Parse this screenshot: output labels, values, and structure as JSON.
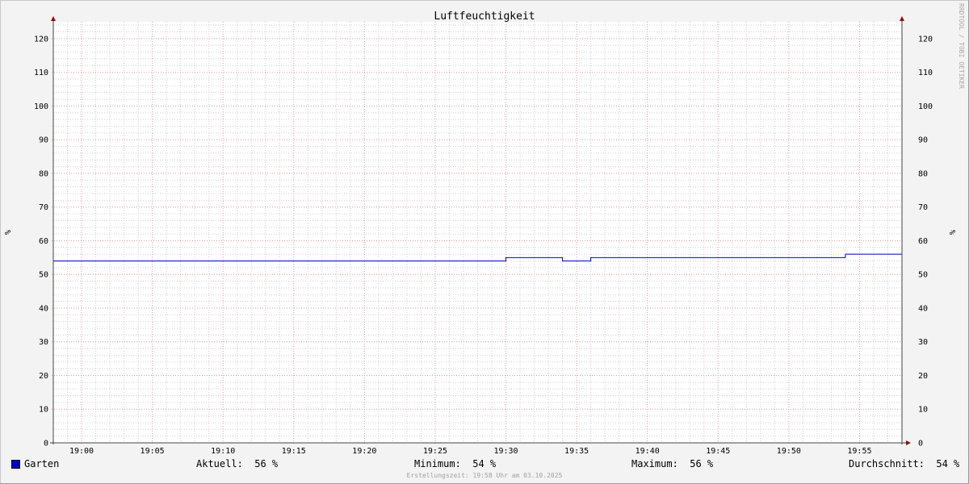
{
  "chart_data": {
    "type": "line",
    "title": "Luftfeuchtigkeit",
    "ylabel": "%",
    "ylabel_right": "%",
    "ylim": [
      0,
      125
    ],
    "yticks": [
      0,
      10,
      20,
      30,
      40,
      50,
      60,
      70,
      80,
      90,
      100,
      110,
      120
    ],
    "xlim": [
      "18:58",
      "19:58"
    ],
    "xticks": [
      "19:00",
      "19:05",
      "19:10",
      "19:15",
      "19:20",
      "19:25",
      "19:30",
      "19:35",
      "19:40",
      "19:45",
      "19:50",
      "19:55"
    ],
    "grid": true,
    "series": [
      {
        "name": "Garten",
        "color": "#0000cc",
        "step": true,
        "points": [
          [
            "18:58",
            54
          ],
          [
            "19:30",
            55
          ],
          [
            "19:34",
            54
          ],
          [
            "19:36",
            55
          ],
          [
            "19:54",
            56
          ],
          [
            "19:58",
            56
          ]
        ]
      }
    ]
  },
  "legend": {
    "series_label": "Garten",
    "current": "Aktuell:  56 %",
    "minimum": "Minimum:  54 %",
    "maximum": "Maximum:  56 %",
    "average": "Durchschnitt:  54 %"
  },
  "footer": "Erstellungszeit: 19:58 Uhr am 03.10.2025",
  "watermark": "RRDTOOL / TOBI OETIKER",
  "colors": {
    "series": "#0000cc",
    "major_grid": "#e0a0a0",
    "minor_grid": "#d0d0d0",
    "arrow": "#881111"
  }
}
